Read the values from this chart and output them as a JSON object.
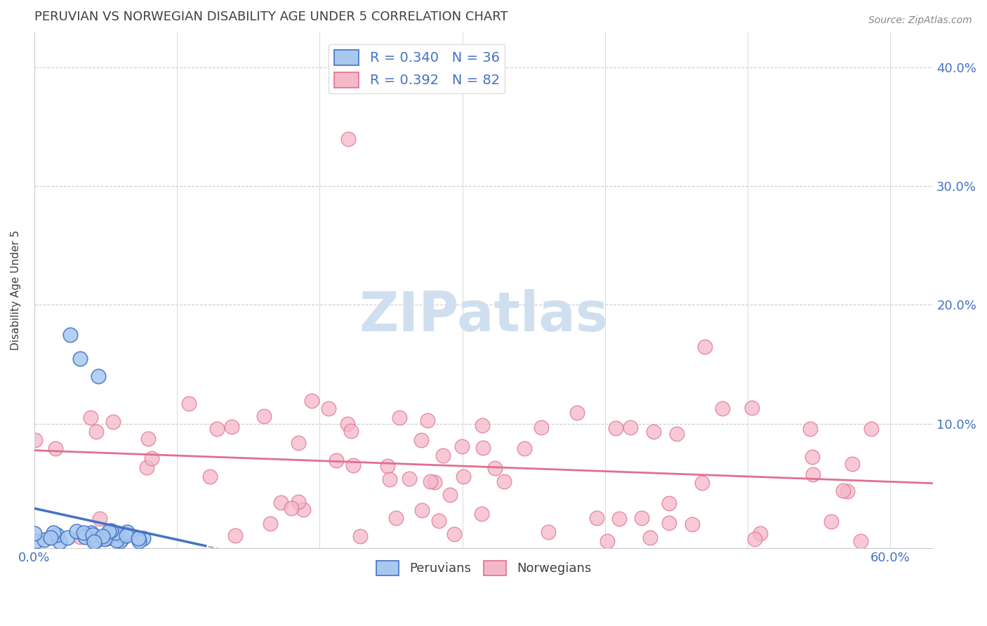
{
  "title": "PERUVIAN VS NORWEGIAN DISABILITY AGE UNDER 5 CORRELATION CHART",
  "source": "Source: ZipAtlas.com",
  "ylabel": "Disability Age Under 5",
  "xlim": [
    0.0,
    0.63
  ],
  "ylim": [
    -0.005,
    0.43
  ],
  "peruvian_R": 0.34,
  "peruvian_N": 36,
  "norwegian_R": 0.392,
  "norwegian_N": 82,
  "peruvian_color": "#a8c8f0",
  "peruvian_edge_color": "#4472c4",
  "norwegian_color": "#f4b8c8",
  "norwegian_edge_color": "#e07090",
  "trend_peruvian_color": "#4472c4",
  "trend_norwegian_color": "#e07090",
  "trend_gray_color": "#aaaaaa",
  "grid_color": "#cccccc",
  "background_color": "#ffffff",
  "title_color": "#404040",
  "axis_label_color": "#4472c4",
  "watermark_color": "#d0dff0",
  "legend_label_color": "#4472c4"
}
